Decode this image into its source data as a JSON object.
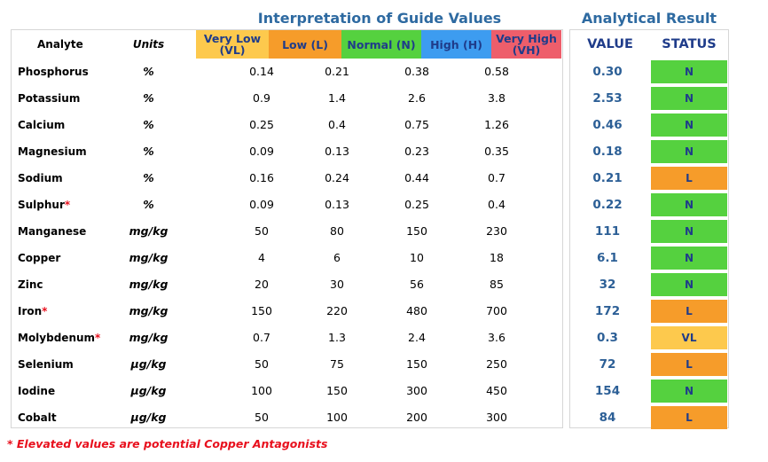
{
  "titles": {
    "guide": "Interpretation of Guide Values",
    "result": "Analytical Result"
  },
  "headers": {
    "analyte": "Analyte",
    "units": "Units",
    "very_low_line1": "Very Low",
    "very_low_line2": "(VL)",
    "low": "Low (L)",
    "normal": "Normal (N)",
    "high": "High (H)",
    "very_high_line1": "Very High",
    "very_high_line2": "(VH)",
    "value": "VALUE",
    "status": "STATUS"
  },
  "colors": {
    "very_low": "#fdc94d",
    "low": "#f69c2a",
    "normal": "#55d13f",
    "high": "#3d9cf0",
    "very_high": "#ee5e6b",
    "title_blue": "#2e6aa1",
    "value_blue": "#2c5f96",
    "asterisk_red": "#e8101d"
  },
  "rows": [
    {
      "analyte": "Phosphorus",
      "flag": "",
      "units": "%",
      "vl": "0.14",
      "l": "0.21",
      "n": "0.38",
      "h": "0.58",
      "value": "0.30",
      "status": "N"
    },
    {
      "analyte": "Potassium",
      "flag": "",
      "units": "%",
      "vl": "0.9",
      "l": "1.4",
      "n": "2.6",
      "h": "3.8",
      "value": "2.53",
      "status": "N"
    },
    {
      "analyte": "Calcium",
      "flag": "",
      "units": "%",
      "vl": "0.25",
      "l": "0.4",
      "n": "0.75",
      "h": "1.26",
      "value": "0.46",
      "status": "N"
    },
    {
      "analyte": "Magnesium",
      "flag": "",
      "units": "%",
      "vl": "0.09",
      "l": "0.13",
      "n": "0.23",
      "h": "0.35",
      "value": "0.18",
      "status": "N"
    },
    {
      "analyte": "Sodium",
      "flag": "",
      "units": "%",
      "vl": "0.16",
      "l": "0.24",
      "n": "0.44",
      "h": "0.7",
      "value": "0.21",
      "status": "L"
    },
    {
      "analyte": "Sulphur",
      "flag": "*",
      "units": "%",
      "vl": "0.09",
      "l": "0.13",
      "n": "0.25",
      "h": "0.4",
      "value": "0.22",
      "status": "N"
    },
    {
      "analyte": "Manganese",
      "flag": "",
      "units": "mg/kg",
      "vl": "50",
      "l": "80",
      "n": "150",
      "h": "230",
      "value": "111",
      "status": "N"
    },
    {
      "analyte": "Copper",
      "flag": "",
      "units": "mg/kg",
      "vl": "4",
      "l": "6",
      "n": "10",
      "h": "18",
      "value": "6.1",
      "status": "N"
    },
    {
      "analyte": "Zinc",
      "flag": "",
      "units": "mg/kg",
      "vl": "20",
      "l": "30",
      "n": "56",
      "h": "85",
      "value": "32",
      "status": "N"
    },
    {
      "analyte": "Iron",
      "flag": "*",
      "units": "mg/kg",
      "vl": "150",
      "l": "220",
      "n": "480",
      "h": "700",
      "value": "172",
      "status": "L"
    },
    {
      "analyte": "Molybdenum",
      "flag": "*",
      "units": "mg/kg",
      "vl": "0.7",
      "l": "1.3",
      "n": "2.4",
      "h": "3.6",
      "value": "0.3",
      "status": "VL"
    },
    {
      "analyte": "Selenium",
      "flag": "",
      "units": "µg/kg",
      "vl": "50",
      "l": "75",
      "n": "150",
      "h": "250",
      "value": "72",
      "status": "L"
    },
    {
      "analyte": "Iodine",
      "flag": "",
      "units": "µg/kg",
      "vl": "100",
      "l": "150",
      "n": "300",
      "h": "450",
      "value": "154",
      "status": "N"
    },
    {
      "analyte": "Cobalt",
      "flag": "",
      "units": "µg/kg",
      "vl": "50",
      "l": "100",
      "n": "200",
      "h": "300",
      "value": "84",
      "status": "L"
    }
  ],
  "footnote": "* Elevated values are potential Copper Antagonists"
}
